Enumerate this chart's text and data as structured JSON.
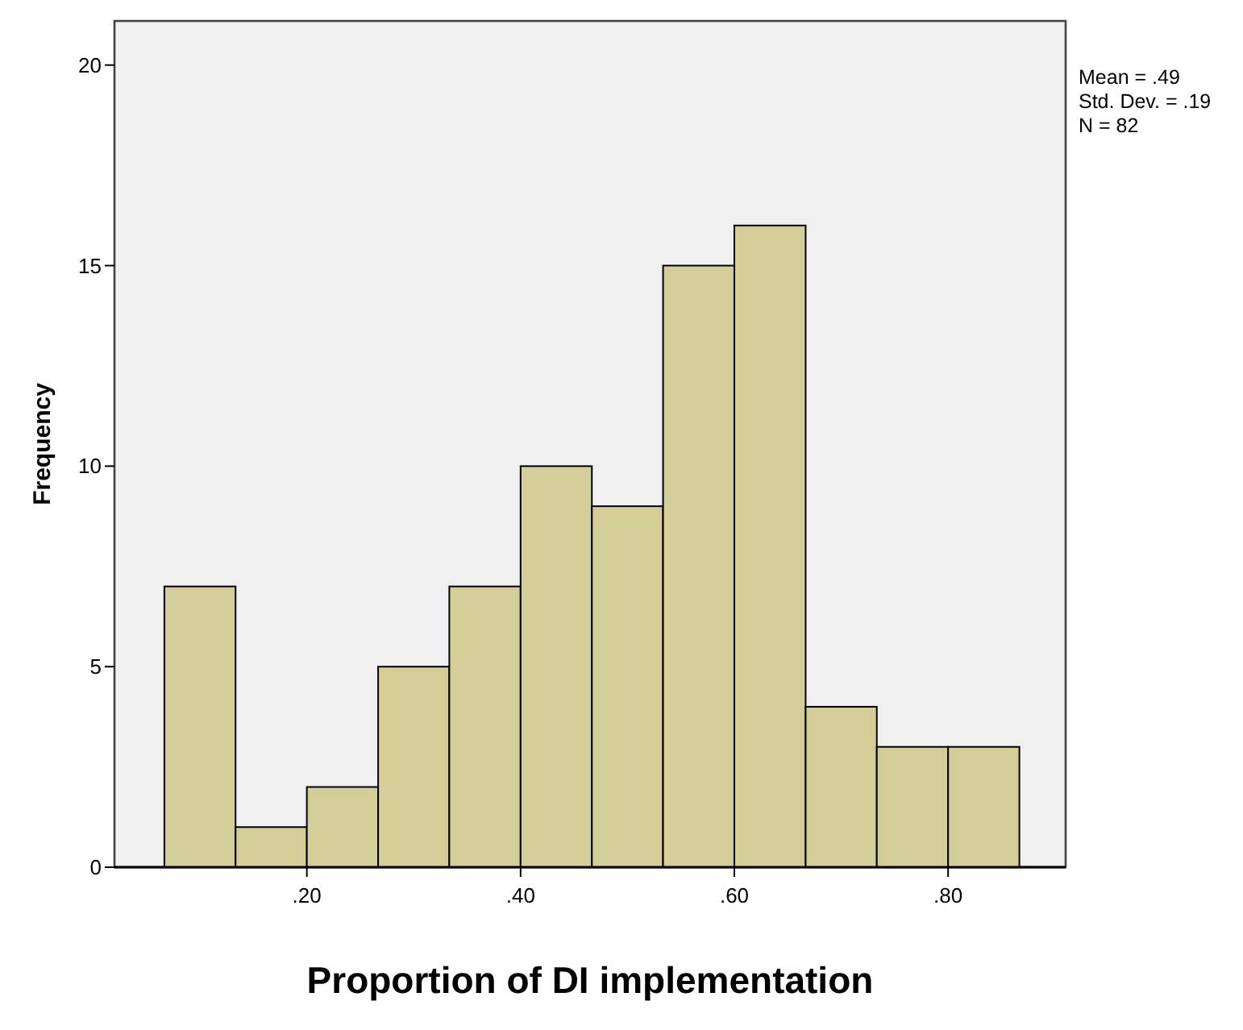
{
  "chart_data": {
    "type": "histogram",
    "xlabel": "Proportion of DI implementation",
    "ylabel": "Frequency",
    "bins": [
      0.0667,
      0.1333,
      0.2,
      0.2667,
      0.3333,
      0.4,
      0.4667,
      0.5333,
      0.6,
      0.6667,
      0.7333,
      0.8,
      0.8667
    ],
    "values": [
      7,
      1,
      2,
      5,
      7,
      10,
      9,
      15,
      16,
      4,
      3,
      3
    ],
    "color": "#d3ce97",
    "xlim": [
      0.02,
      0.91
    ],
    "xticks": [
      {
        "value": 0.2,
        "label": ".20"
      },
      {
        "value": 0.4,
        "label": ".40"
      },
      {
        "value": 0.6,
        "label": ".60"
      },
      {
        "value": 0.8,
        "label": ".80"
      }
    ],
    "ylim": [
      0,
      21.1
    ],
    "yticks": [
      0,
      5,
      10,
      15,
      20
    ],
    "annotations": [
      "Mean = .49",
      "Std. Dev. = .19",
      "N = 82"
    ]
  }
}
